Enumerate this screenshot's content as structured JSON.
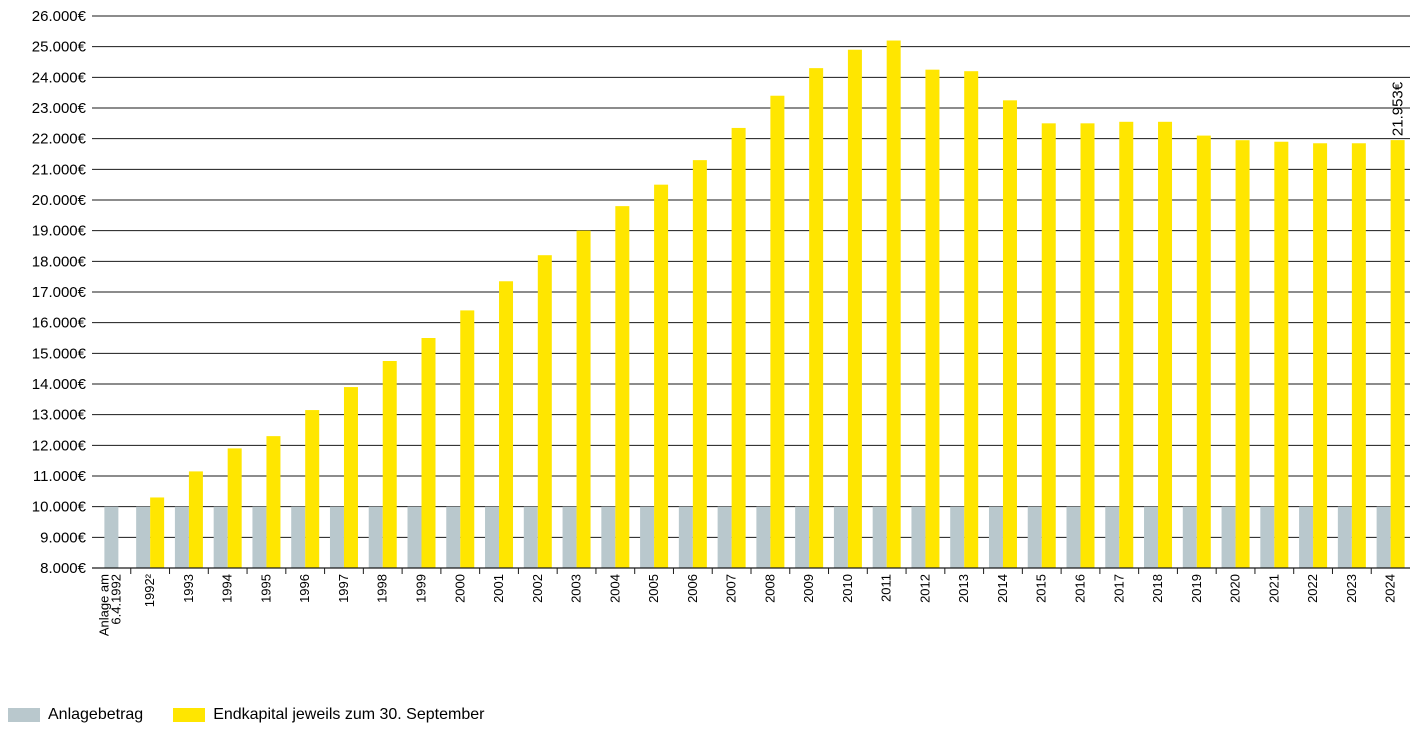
{
  "chart_data": {
    "type": "bar",
    "categories": [
      "Anlage am 6.4.1992",
      "1992²",
      "1993",
      "1994",
      "1995",
      "1996",
      "1997",
      "1998",
      "1999",
      "2000",
      "2001",
      "2002",
      "2003",
      "2004",
      "2005",
      "2006",
      "2007",
      "2008",
      "2009",
      "2010",
      "2011",
      "2012",
      "2013",
      "2014",
      "2015",
      "2016",
      "2017",
      "2018",
      "2019",
      "2020",
      "2021",
      "2022",
      "2023",
      "2024"
    ],
    "series": [
      {
        "name": "Anlagebetrag",
        "color": "#b9c8cd",
        "values": [
          10000,
          10000,
          10000,
          10000,
          10000,
          10000,
          10000,
          10000,
          10000,
          10000,
          10000,
          10000,
          10000,
          10000,
          10000,
          10000,
          10000,
          10000,
          10000,
          10000,
          10000,
          10000,
          10000,
          10000,
          10000,
          10000,
          10000,
          10000,
          10000,
          10000,
          10000,
          10000,
          10000,
          10000
        ]
      },
      {
        "name": "Endkapital jeweils zum 30. September",
        "color": "#ffe600",
        "values": [
          null,
          10300,
          11150,
          11900,
          12300,
          13150,
          13900,
          14750,
          15500,
          16400,
          17350,
          18200,
          19000,
          19800,
          20500,
          21300,
          22350,
          23400,
          24300,
          24900,
          25200,
          24250,
          24200,
          23250,
          22500,
          22500,
          22550,
          22550,
          22100,
          21950,
          21900,
          21850,
          21850,
          21953
        ]
      }
    ],
    "y_ticks": [
      "8.000€",
      "9.000€",
      "10.000€",
      "11.000€",
      "12.000€",
      "13.000€",
      "14.000€",
      "15.000€",
      "16.000€",
      "17.000€",
      "18.000€",
      "19.000€",
      "20.000€",
      "21.000€",
      "22.000€",
      "23.000€",
      "24.000€",
      "25.000€",
      "26.000€"
    ],
    "ylim": [
      8000,
      26000
    ],
    "grid": true,
    "legend_position": "bottom-left",
    "annotation": "21.953€"
  }
}
